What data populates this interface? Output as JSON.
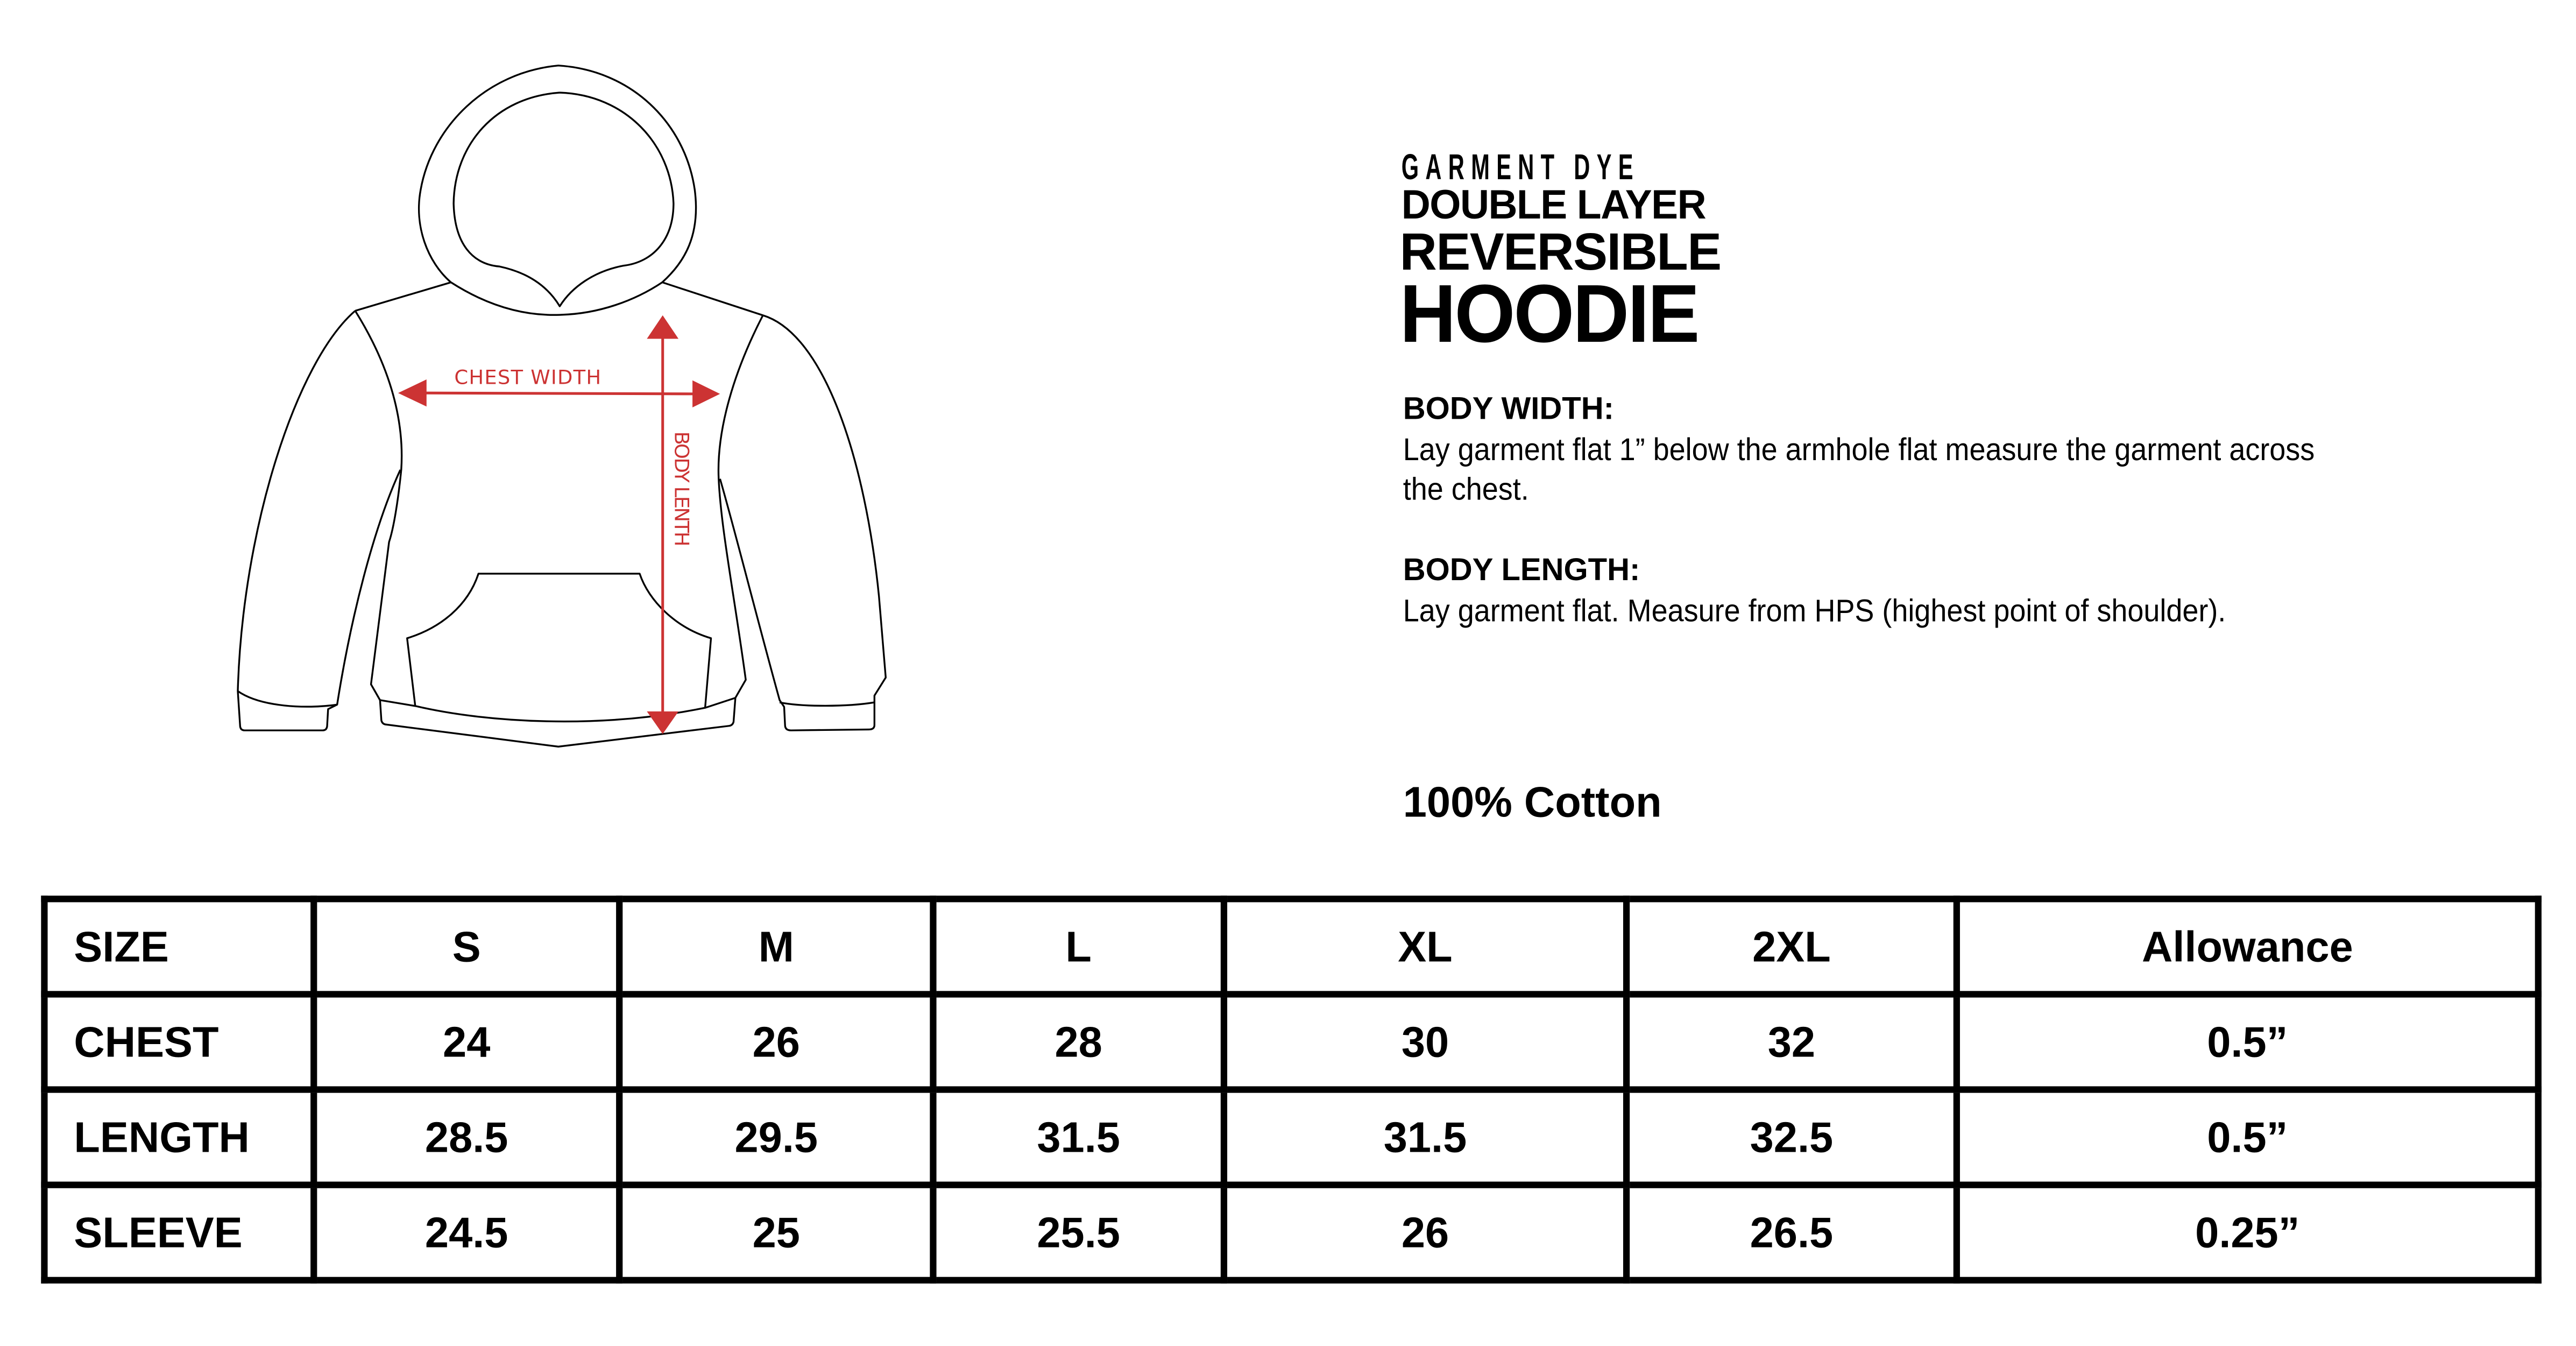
{
  "title": {
    "line1": "GARMENT DYE",
    "line2": "DOUBLE LAYER",
    "line3": "REVERSIBLE",
    "line4": "HOODIE"
  },
  "diagram": {
    "chest_label": "CHEST WIDTH",
    "length_label": "BODY LENTH",
    "arrow_color": "#cc3333"
  },
  "instructions": [
    {
      "heading": "BODY WIDTH:",
      "text_line1": "Lay garment flat 1” below the armhole flat measure the garment across",
      "text_line2": "the chest."
    },
    {
      "heading": "BODY LENGTH:",
      "text_line1": "Lay garment flat. Measure from HPS (highest point of shoulder).",
      "text_line2": ""
    }
  ],
  "material": "100% Cotton",
  "size_table": {
    "headers": [
      "SIZE",
      "S",
      "M",
      "L",
      "XL",
      "2XL",
      "Allowance"
    ],
    "rows": [
      [
        "CHEST",
        "24",
        "26",
        "28",
        "30",
        "32",
        "0.5”"
      ],
      [
        "LENGTH",
        "28.5",
        "29.5",
        "31.5",
        "31.5",
        "32.5",
        "0.5”"
      ],
      [
        "SLEEVE",
        "24.5",
        "25",
        "25.5",
        "26",
        "26.5",
        "0.25”"
      ]
    ]
  }
}
